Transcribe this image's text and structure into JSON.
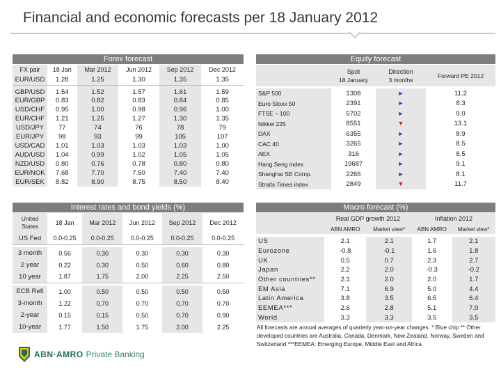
{
  "title": "Financial and economic forecasts per 18 January 2012",
  "forex": {
    "header": "Forex forecast",
    "columns": [
      "FX pair",
      "18 Jan",
      "Mar 2012",
      "Jun 2012",
      "Sep 2012",
      "Dec 2012"
    ],
    "rows": [
      [
        "EUR/USD",
        "1.28",
        "1.25",
        "1.30",
        "1.35",
        "1.35"
      ],
      [
        "GBP/USD",
        "1.54",
        "1.52",
        "1.57",
        "1.61",
        "1.59"
      ],
      [
        "EUR/GBP",
        "0.83",
        "0.82",
        "0.83",
        "0.84",
        "0.85"
      ],
      [
        "USD/CHF",
        "0.95",
        "1.00",
        "0.98",
        "0.96",
        "1.00"
      ],
      [
        "EUR/CHF",
        "1.21",
        "1.25",
        "1.27",
        "1.30",
        "1.35"
      ],
      [
        "USD/JPY",
        "77",
        "74",
        "76",
        "78",
        "79"
      ],
      [
        "EUR/JPY",
        "98",
        "93",
        "99",
        "105",
        "107"
      ],
      [
        "USD/CAD",
        "1.01",
        "1.03",
        "1.03",
        "1.03",
        "1.00"
      ],
      [
        "AUD/USD",
        "1.04",
        "0.99",
        "1.02",
        "1.05",
        "1.05"
      ],
      [
        "NZD/USD",
        "0.80",
        "0.76",
        "0.78",
        "0.80",
        "0.80"
      ],
      [
        "EUR/NOK",
        "7.68",
        "7.70",
        "7.50",
        "7.40",
        "7.40"
      ],
      [
        "EUR/SEK",
        "8.82",
        "8.90",
        "8.75",
        "8.50",
        "8.40"
      ]
    ]
  },
  "equity": {
    "header": "Equity forecast",
    "col_spot": "Spot",
    "col_spot_sub": "18 January",
    "col_dir": "Direction",
    "col_dir_sub": "3 months",
    "col_pe": "Forward PE 2012",
    "rows": [
      {
        "name": "S&P 500",
        "spot": "1308",
        "dir": "right",
        "pe": "11.2"
      },
      {
        "name": "Euro Stoxx 50",
        "spot": "2391",
        "dir": "right",
        "pe": "8.3"
      },
      {
        "name": "FTSE – 100",
        "spot": "5702",
        "dir": "right",
        "pe": "9.0"
      },
      {
        "name": "Nikkei 225",
        "spot": "8551",
        "dir": "down",
        "pe": "13.1"
      },
      {
        "name": "DAX",
        "spot": "6355",
        "dir": "right",
        "pe": "8.9"
      },
      {
        "name": "CAC 40",
        "spot": "3265",
        "dir": "right",
        "pe": "8.5"
      },
      {
        "name": "AEX",
        "spot": "316",
        "dir": "right",
        "pe": "8.5"
      },
      {
        "name": "Hang Seng index",
        "spot": "19687",
        "dir": "right",
        "pe": "9.1"
      },
      {
        "name": "Shanghai SE Comp.",
        "spot": "2266",
        "dir": "right",
        "pe": "8.1"
      },
      {
        "name": "Straits Times index",
        "spot": "2849",
        "dir": "down",
        "pe": "11.7"
      }
    ],
    "colors": {
      "right": "#2a3fbf",
      "down": "#d01f1f"
    }
  },
  "rates": {
    "header": "Interest rates and bond yields (%)",
    "columns": [
      "United States",
      "18 Jan",
      "Mar 2012",
      "Jun 2012",
      "Sep 2012",
      "Dec 2012"
    ],
    "groups": [
      [
        [
          "US Fed",
          "0.0-0.25",
          "0.0-0.25",
          "0.0-0.25",
          "0.0-0.25",
          "0.0-0.25"
        ]
      ],
      [
        [
          "3 month",
          "0.56",
          "0.30",
          "0.30",
          "0.30",
          "0.30"
        ],
        [
          "2 year",
          "0.22",
          "0.30",
          "0.50",
          "0.60",
          "0.80"
        ],
        [
          "10 year",
          "1.87",
          "1.75",
          "2.00",
          "2.25",
          "2.50"
        ]
      ],
      [
        [
          "ECB Refi",
          "1.00",
          "0.50",
          "0.50",
          "0.50",
          "0.50"
        ],
        [
          "3-month",
          "1.22",
          "0.70",
          "0.70",
          "0.70",
          "0.70"
        ],
        [
          "2-year",
          "0.15",
          "0.15",
          "0.50",
          "0.70",
          "0.90"
        ],
        [
          "10-year",
          "1.77",
          "1.50",
          "1.75",
          "2.00",
          "2.25"
        ]
      ]
    ]
  },
  "macro": {
    "header": "Macro forecast (%)",
    "gdp_label": "Real GDP growth 2012",
    "inflation_label": "Inflation 2012",
    "sub_abn": "ABN AMRO",
    "sub_mkt": "Market view*",
    "rows": [
      [
        "US",
        "2.1",
        "2.1",
        "1.7",
        "2.1"
      ],
      [
        "Eurozone",
        "-0.8",
        "-0.1",
        "1.6",
        "1.8"
      ],
      [
        "UK",
        "0.5",
        "0.7",
        "2.3",
        "2.7"
      ],
      [
        "Japan",
        "2.2",
        "2.0",
        "-0.3",
        "-0.2"
      ],
      [
        "Other countries**",
        "2.1",
        "2.0",
        "2.0",
        "1.7"
      ],
      [
        "EM Asia",
        "7.1",
        "6.9",
        "5.0",
        "4.4"
      ],
      [
        "Latin America",
        "3.8",
        "3.5",
        "6.5",
        "6.4"
      ],
      [
        "EEMEA***",
        "2.6",
        "2.8",
        "5.1",
        "7.0"
      ],
      [
        "World",
        "3.3",
        "3.3",
        "3.5",
        "3.5"
      ]
    ],
    "footnote": "All forecasts are annual averages of quarterly year-on-year changes. * Blue chip ** Other developed countries are Australia, Canada, Denmark, New Zealand, Norway, Sweden and Switzerland ***EEMEA: Emerging Europe, Middle East and Africa"
  },
  "logo": {
    "brand": "ABN·AMRO",
    "sub": "Private Banking",
    "color_green": "#1d6f5e",
    "color_yellow": "#f2c200"
  }
}
